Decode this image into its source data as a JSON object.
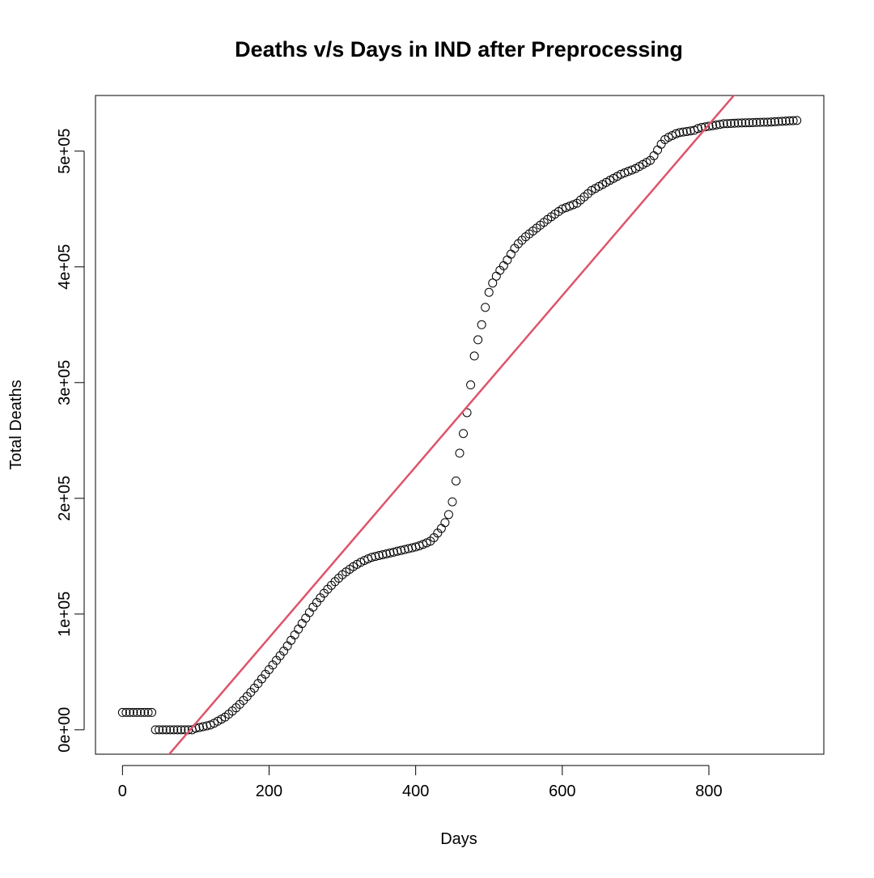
{
  "chart_data": {
    "type": "scatter",
    "title": "Deaths v/s Days in IND after Preprocessing",
    "xlabel": "Days",
    "ylabel": "Total Deaths",
    "xlim": [
      -36.8,
      956.8
    ],
    "ylim": [
      -21080,
      548080
    ],
    "xticks": [
      0,
      200,
      400,
      600,
      800
    ],
    "yticks": [
      {
        "value": 0,
        "label": "0e+00"
      },
      {
        "value": 100000,
        "label": "1e+05"
      },
      {
        "value": 200000,
        "label": "2e+05"
      },
      {
        "value": 300000,
        "label": "3e+05"
      },
      {
        "value": 400000,
        "label": "4e+05"
      },
      {
        "value": 500000,
        "label": "5e+05"
      }
    ],
    "color": "#000000",
    "x": [
      0,
      5,
      10,
      15,
      20,
      25,
      30,
      35,
      40,
      45,
      50,
      55,
      60,
      65,
      70,
      75,
      80,
      85,
      90,
      95,
      100,
      105,
      110,
      115,
      120,
      125,
      130,
      135,
      140,
      145,
      150,
      155,
      160,
      165,
      170,
      175,
      180,
      185,
      190,
      195,
      200,
      205,
      210,
      215,
      220,
      225,
      230,
      235,
      240,
      245,
      250,
      255,
      260,
      265,
      270,
      275,
      280,
      285,
      290,
      295,
      300,
      305,
      310,
      315,
      320,
      325,
      330,
      335,
      340,
      345,
      350,
      355,
      360,
      365,
      370,
      375,
      380,
      385,
      390,
      395,
      400,
      405,
      410,
      415,
      420,
      425,
      430,
      435,
      440,
      445,
      450,
      455,
      460,
      465,
      470,
      475,
      480,
      485,
      490,
      495,
      500,
      505,
      510,
      515,
      520,
      525,
      530,
      535,
      540,
      545,
      550,
      555,
      560,
      565,
      570,
      575,
      580,
      585,
      590,
      595,
      600,
      605,
      610,
      615,
      620,
      625,
      630,
      635,
      640,
      645,
      650,
      655,
      660,
      665,
      670,
      675,
      680,
      685,
      690,
      695,
      700,
      705,
      710,
      715,
      720,
      725,
      730,
      735,
      740,
      745,
      750,
      755,
      760,
      765,
      770,
      775,
      780,
      785,
      790,
      795,
      800,
      805,
      810,
      815,
      820,
      825,
      830,
      835,
      840,
      845,
      850,
      855,
      860,
      865,
      870,
      875,
      880,
      885,
      890,
      895,
      900,
      905,
      910,
      915,
      920
    ],
    "values": [
      15000,
      15000,
      15000,
      15000,
      15000,
      15000,
      15000,
      15000,
      15000,
      0,
      0,
      0,
      0,
      0,
      0,
      0,
      0,
      0,
      0,
      0,
      1400,
      2000,
      2700,
      3400,
      4200,
      5700,
      7400,
      9200,
      11000,
      13500,
      16200,
      19000,
      22000,
      25400,
      28800,
      32400,
      36000,
      40000,
      44000,
      48000,
      52000,
      56000,
      60000,
      64000,
      68000,
      72500,
      77300,
      82000,
      87000,
      91800,
      96500,
      101300,
      106000,
      110000,
      114000,
      118000,
      121500,
      124800,
      128000,
      131000,
      134000,
      136400,
      138700,
      141000,
      143000,
      144700,
      146300,
      147700,
      149000,
      149800,
      150600,
      151300,
      152000,
      152800,
      153500,
      154300,
      155000,
      155700,
      156500,
      157200,
      158000,
      159000,
      160200,
      161500,
      163000,
      166000,
      170000,
      174000,
      179000,
      186000,
      197000,
      215000,
      239000,
      256000,
      274000,
      298000,
      323000,
      337000,
      350000,
      365000,
      378000,
      386000,
      392000,
      397000,
      401000,
      406000,
      411000,
      416000,
      420000,
      423000,
      426000,
      428500,
      431000,
      433500,
      436000,
      438500,
      441000,
      443300,
      445600,
      447800,
      450000,
      451200,
      452500,
      453700,
      455000,
      457800,
      460500,
      463200,
      466000,
      467700,
      469500,
      471200,
      473000,
      474800,
      476500,
      478200,
      480000,
      481200,
      482500,
      483700,
      485000,
      486700,
      488500,
      490200,
      492000,
      496000,
      501000,
      506000,
      510000,
      512000,
      513500,
      515000,
      516000,
      516500,
      517000,
      517500,
      518000,
      519500,
      520500,
      521000,
      521500,
      522000,
      522600,
      523100,
      523700,
      523800,
      524000,
      524100,
      524300,
      524400,
      524500,
      524600,
      524700,
      524800,
      524900,
      525000,
      525000,
      525200,
      525400,
      525600,
      525800,
      526000,
      526200,
      526300,
      526500
    ],
    "abline": {
      "intercept": -68250,
      "slope": 739,
      "color": "#DF536B"
    }
  }
}
